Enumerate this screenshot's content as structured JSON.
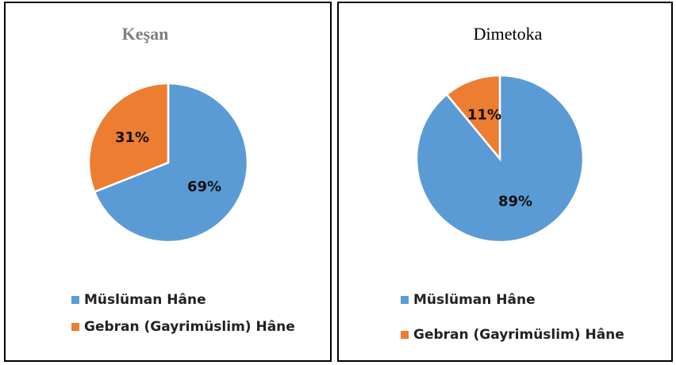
{
  "chart_data": [
    {
      "type": "pie",
      "title": "Keşan",
      "categories": [
        "Müslüman Hâne",
        "Gebran (Gayrimüslim) Hâne"
      ],
      "values": [
        69,
        31
      ],
      "value_labels": [
        "69%",
        "31%"
      ],
      "colors": [
        "#5b9bd5",
        "#ed7d31"
      ]
    },
    {
      "type": "pie",
      "title": "Dimetoka",
      "categories": [
        "Müslüman Hâne",
        "Gebran (Gayrimüslim) Hâne"
      ],
      "values": [
        89,
        11
      ],
      "value_labels": [
        "89%",
        "11%"
      ],
      "colors": [
        "#5b9bd5",
        "#ed7d31"
      ]
    }
  ]
}
